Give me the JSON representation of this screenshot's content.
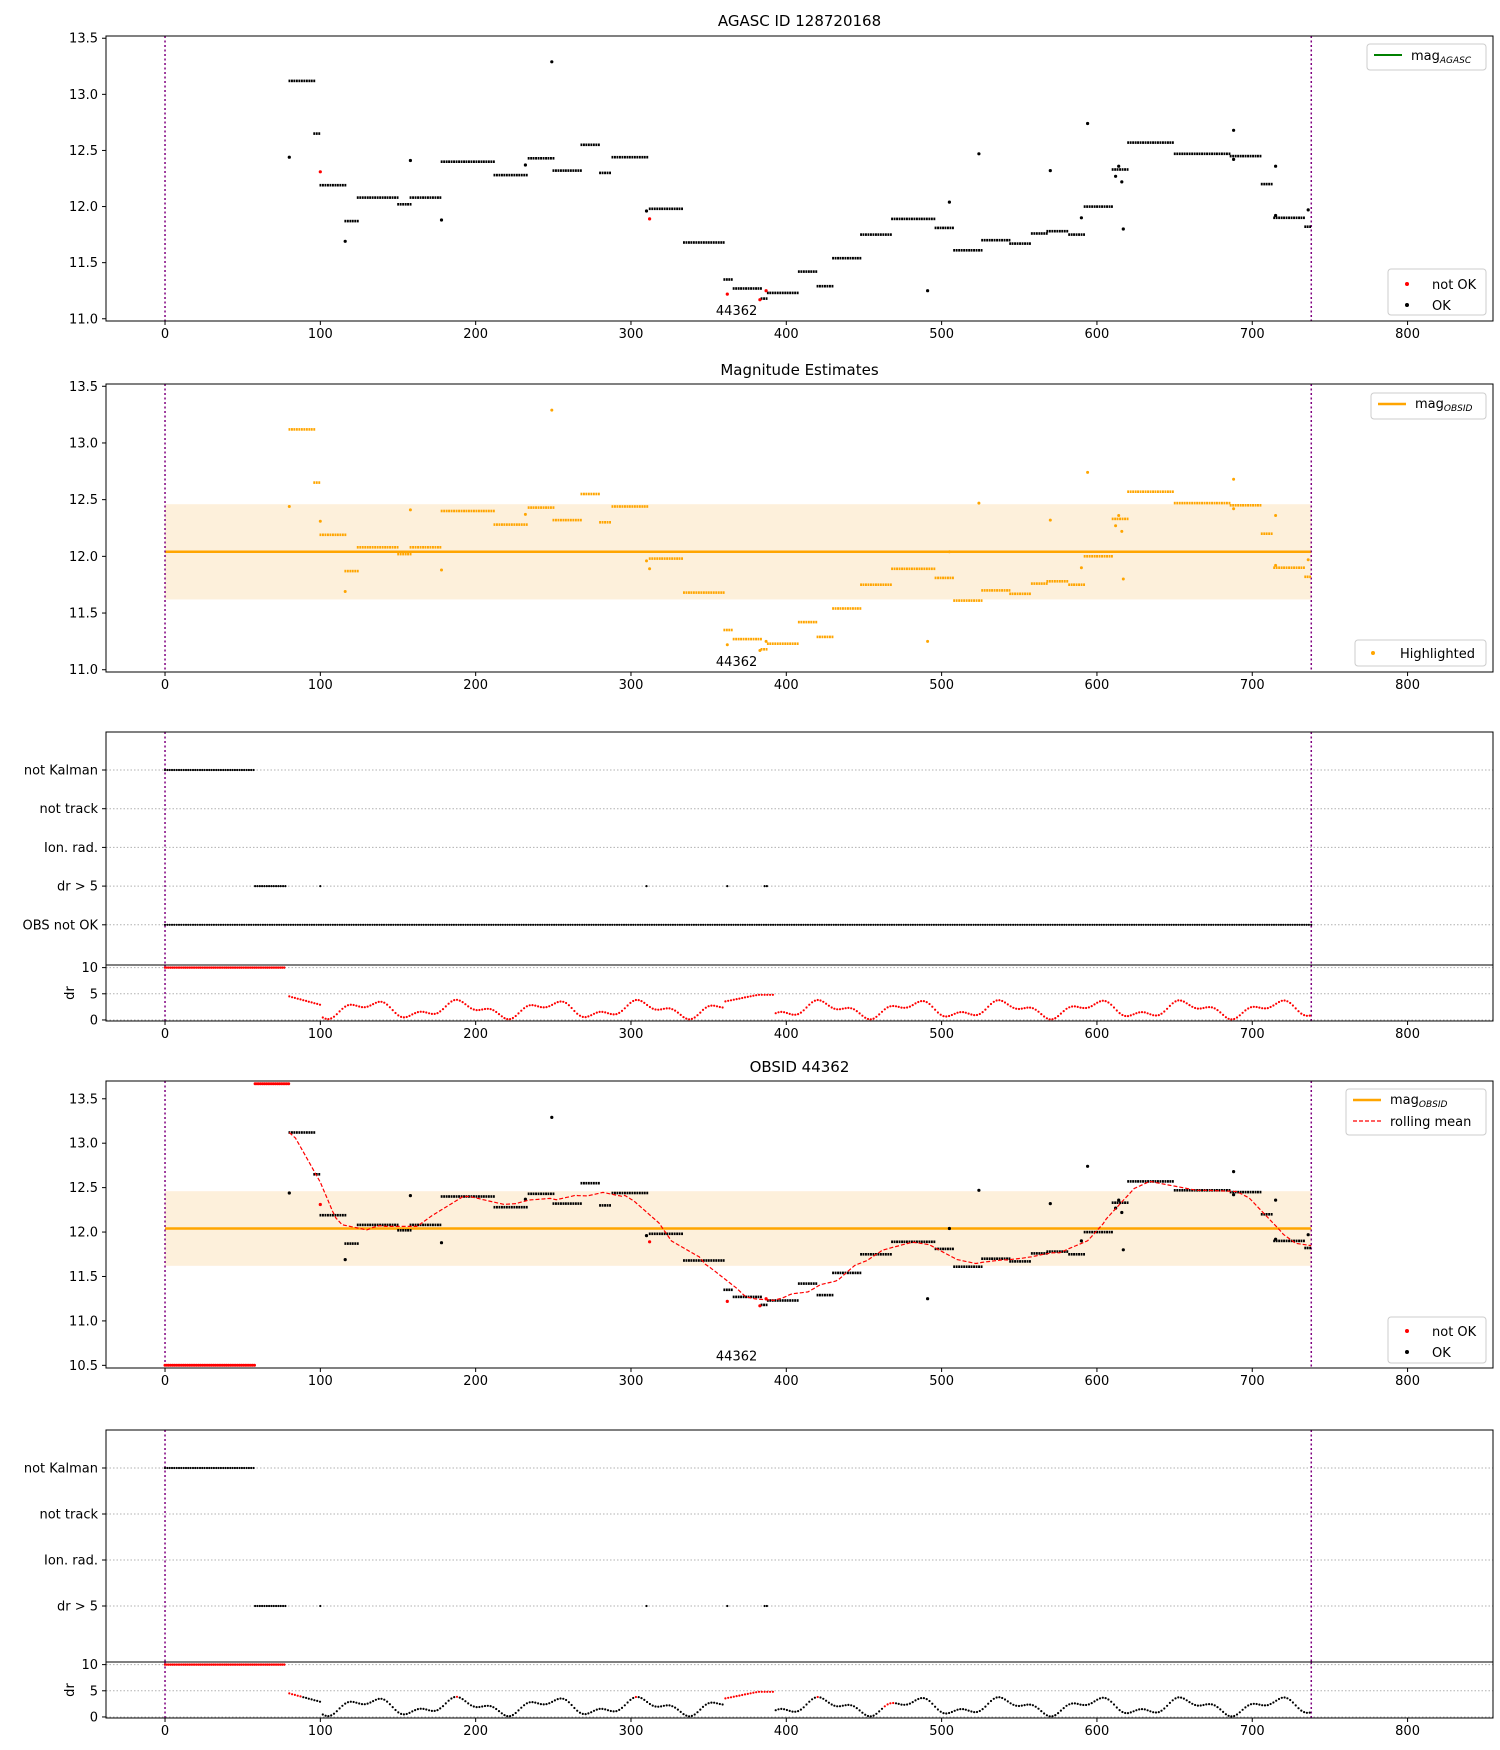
{
  "figure": {
    "panel1_title": "AGASC ID 128720168",
    "panel2_title": "Magnitude Estimates",
    "panel4_title": "OBSID 44362",
    "obsid_label": "44362"
  },
  "legends": {
    "mag_agasc_main": "mag",
    "mag_agasc_sub": "AGASC",
    "mag_obsid_main": "mag",
    "mag_obsid_sub": "OBSID",
    "not_ok": "not OK",
    "ok": "OK",
    "highlighted": "Highlighted",
    "rolling_mean": "rolling mean"
  },
  "flag_labels": [
    "not Kalman",
    "not track",
    "Ion. rad.",
    "dr > 5",
    "OBS not OK"
  ],
  "flag_labels_short": [
    "not Kalman",
    "not track",
    "Ion. rad.",
    "dr > 5"
  ],
  "dr_axis": {
    "label": "dr",
    "ticks": [
      "0",
      "5",
      "10"
    ]
  },
  "colors": {
    "ok": "#000000",
    "not_ok": "#ff0000",
    "highlight": "#ffa500",
    "agasc_line": "#008000",
    "band": "#fdf0db",
    "vline": "#800080"
  },
  "chart_data": [
    {
      "type": "scatter",
      "title": "AGASC ID 128720168",
      "xlim": [
        -38,
        855
      ],
      "ylim": [
        10.98,
        13.52
      ],
      "xticks": [
        0,
        100,
        200,
        300,
        400,
        500,
        600,
        700,
        800
      ],
      "yticks": [
        11.0,
        11.5,
        12.0,
        12.5,
        13.0,
        13.5
      ],
      "vlines": [
        0,
        738
      ],
      "annotation": {
        "text": "44362",
        "x": 368,
        "y": 11.07
      },
      "segments": [
        [
          80,
          96,
          13.12
        ],
        [
          96,
          100,
          12.65
        ],
        [
          100,
          116,
          12.19
        ],
        [
          116,
          124,
          11.87
        ],
        [
          124,
          150,
          12.08
        ],
        [
          150,
          158,
          12.02
        ],
        [
          158,
          178,
          12.08
        ],
        [
          178,
          212,
          12.4
        ],
        [
          212,
          234,
          12.28
        ],
        [
          234,
          250,
          12.43
        ],
        [
          250,
          268,
          12.32
        ],
        [
          268,
          280,
          12.55
        ],
        [
          280,
          288,
          12.3
        ],
        [
          288,
          312,
          12.44
        ],
        [
          312,
          334,
          11.98
        ],
        [
          334,
          360,
          11.68
        ],
        [
          360,
          366,
          11.35
        ],
        [
          366,
          384,
          11.27
        ],
        [
          384,
          388,
          11.18
        ],
        [
          388,
          408,
          11.23
        ],
        [
          408,
          420,
          11.42
        ],
        [
          420,
          430,
          11.29
        ],
        [
          430,
          448,
          11.54
        ],
        [
          448,
          468,
          11.75
        ],
        [
          468,
          496,
          11.89
        ],
        [
          496,
          508,
          11.81
        ],
        [
          508,
          526,
          11.61
        ],
        [
          526,
          544,
          11.7
        ],
        [
          544,
          558,
          11.67
        ],
        [
          558,
          568,
          11.76
        ],
        [
          568,
          582,
          11.78
        ],
        [
          582,
          592,
          11.75
        ],
        [
          592,
          610,
          12.0
        ],
        [
          610,
          620,
          12.33
        ],
        [
          620,
          650,
          12.57
        ],
        [
          650,
          686,
          12.47
        ],
        [
          686,
          706,
          12.45
        ],
        [
          706,
          714,
          12.2
        ],
        [
          714,
          734,
          11.9
        ],
        [
          734,
          738,
          11.82
        ]
      ],
      "outliers": [
        [
          80,
          12.44
        ],
        [
          100,
          12.31,
          "not_ok"
        ],
        [
          116,
          11.69
        ],
        [
          158,
          12.41
        ],
        [
          178,
          11.88
        ],
        [
          232,
          12.37
        ],
        [
          249,
          13.29
        ],
        [
          310,
          11.96
        ],
        [
          312,
          11.89,
          "not_ok"
        ],
        [
          362,
          11.22,
          "not_ok"
        ],
        [
          383,
          11.17,
          "not_ok"
        ],
        [
          387,
          11.25,
          "not_ok"
        ],
        [
          491,
          11.25
        ],
        [
          505,
          12.04
        ],
        [
          524,
          12.47
        ],
        [
          570,
          12.32
        ],
        [
          590,
          11.9
        ],
        [
          594,
          12.74
        ],
        [
          612,
          12.27
        ],
        [
          614,
          12.36
        ],
        [
          616,
          12.22
        ],
        [
          617,
          11.8
        ],
        [
          688,
          12.68
        ],
        [
          688,
          12.42
        ],
        [
          715,
          12.36
        ],
        [
          715,
          11.92
        ],
        [
          736,
          11.97
        ]
      ],
      "legend": [
        "mag_AGASC",
        "not OK",
        "OK"
      ]
    },
    {
      "type": "scatter",
      "title": "Magnitude Estimates",
      "mean": 12.04,
      "band": [
        11.62,
        12.46
      ],
      "points": "same as AGASC panel, all highlighted",
      "legend": [
        "mag_OBSID",
        "Highlighted"
      ]
    },
    {
      "type": "scatter",
      "title": "",
      "categories": [
        "not Kalman",
        "not track",
        "Ion. rad.",
        "dr > 5",
        "OBS not OK"
      ],
      "flags": {
        "not Kalman": [
          [
            0,
            58
          ]
        ],
        "dr > 5": [
          [
            58,
            78
          ],
          [
            100,
            100
          ],
          [
            310,
            310
          ],
          [
            362,
            362
          ],
          [
            386,
            388
          ]
        ],
        "OBS not OK": [
          [
            0,
            738
          ]
        ]
      },
      "dr_subplot": {
        "ylim": [
          0,
          10
        ],
        "threshold": 10,
        "range": [
          80,
          738
        ]
      }
    },
    {
      "type": "line",
      "title": "OBSID 44362",
      "ylim": [
        10.47,
        13.7
      ],
      "yticks": [
        10.5,
        11.0,
        11.5,
        12.0,
        12.5,
        13.0,
        13.5
      ],
      "mean": 12.04,
      "band": [
        11.62,
        12.46
      ],
      "clipped_not_ok": [
        [
          0,
          58,
          10.5
        ],
        [
          58,
          80,
          13.67
        ]
      ],
      "legend": [
        "mag_OBSID",
        "rolling mean",
        "not OK",
        "OK"
      ]
    }
  ]
}
